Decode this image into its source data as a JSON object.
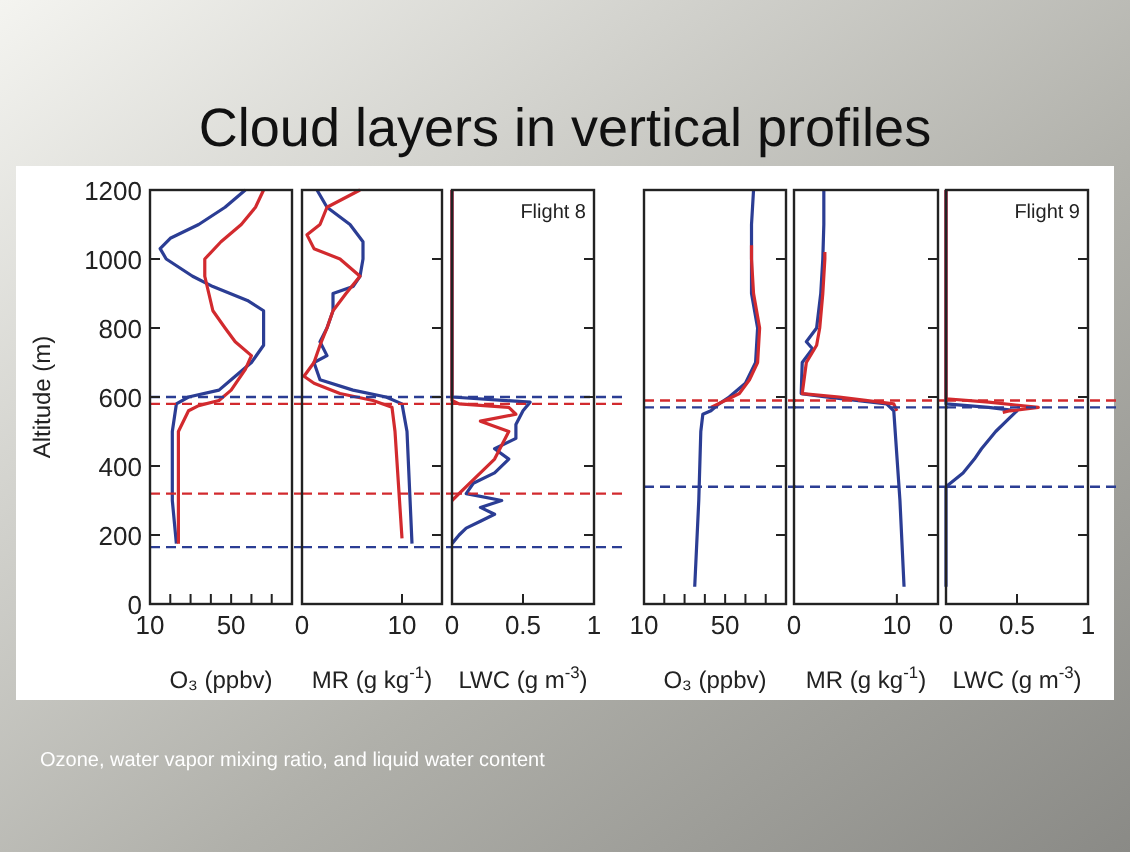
{
  "chart_data": [
    {
      "type": "line",
      "title": "Cloud layers in vertical profiles",
      "ylabel": "Altitude (m)",
      "xlabel": "O₃ (ppbv)",
      "annotations": [
        "Ozone, water vapor mixing ratio, and liquid water content"
      ],
      "xlim": [
        10,
        80
      ],
      "xticks": [
        10,
        {
          "value": 20,
          "label": null
        },
        {
          "value": 30,
          "label": null
        },
        {
          "value": 40,
          "label": null
        },
        50,
        {
          "value": 60,
          "label": null
        },
        {
          "value": 70,
          "label": null
        }
      ],
      "ylim": [
        0,
        1200
      ],
      "yticks": [
        0,
        200,
        400,
        600,
        800,
        1000,
        1200
      ],
      "grid": false,
      "series": [
        {
          "color": "#2b3d94",
          "x": [
            23,
            21,
            21,
            23,
            29,
            44,
            50,
            60,
            66,
            66,
            66,
            58,
            41,
            31,
            18,
            15,
            20,
            34,
            47,
            57
          ],
          "values": [
            175,
            300,
            500,
            580,
            600,
            620,
            650,
            700,
            750,
            800,
            850,
            880,
            920,
            950,
            1000,
            1030,
            1060,
            1100,
            1150,
            1200
          ]
        },
        {
          "color": "#d22a2e",
          "x": [
            24,
            24,
            29,
            34,
            44,
            50,
            57,
            60,
            52,
            47,
            41,
            39,
            37,
            37,
            45,
            55,
            62,
            66
          ],
          "values": [
            175,
            500,
            560,
            575,
            590,
            620,
            680,
            720,
            760,
            800,
            850,
            900,
            950,
            1000,
            1050,
            1100,
            1150,
            1200
          ]
        }
      ],
      "ref_lines": [
        {
          "axis": "y",
          "value": 600,
          "color": "#2b3d94",
          "line_style": "dashed"
        },
        {
          "axis": "y",
          "value": 580,
          "color": "#d22a2e",
          "line_style": "dashed"
        },
        {
          "axis": "y",
          "value": 320,
          "color": "#d22a2e",
          "line_style": "dashed"
        },
        {
          "axis": "y",
          "value": 165,
          "color": "#2b3d94",
          "line_style": "dashed"
        }
      ]
    },
    {
      "type": "line",
      "xlabel": "MR (g kg$^{-1}$)",
      "xlim": [
        0,
        14
      ],
      "xticks": [
        0,
        10
      ],
      "ylim": [
        0,
        1200
      ],
      "yticks": [
        0,
        200,
        400,
        600,
        800,
        1000,
        1200
      ],
      "tick_labels": "x",
      "grid": false,
      "series": [
        {
          "color": "#2b3d94",
          "x": [
            11.0,
            10.5,
            10.0,
            8.4,
            5.1,
            1.8,
            1.2,
            2.5,
            1.8,
            2.5,
            3.1,
            3.1,
            5.1,
            5.8,
            6.1,
            6.1,
            4.8,
            2.5,
            1.5
          ],
          "values": [
            175,
            500,
            580,
            600,
            620,
            650,
            700,
            720,
            760,
            800,
            850,
            900,
            920,
            950,
            1000,
            1050,
            1100,
            1150,
            1200
          ]
        },
        {
          "color": "#d22a2e",
          "x": [
            10.0,
            9.3,
            9.0,
            7.1,
            3.8,
            1.2,
            0.2,
            1.2,
            1.8,
            2.5,
            3.1,
            4.4,
            5.8,
            3.8,
            1.2,
            0.5,
            1.8,
            2.5,
            5.8
          ],
          "values": [
            190,
            500,
            570,
            590,
            610,
            640,
            660,
            700,
            750,
            800,
            850,
            900,
            950,
            1000,
            1030,
            1070,
            1100,
            1150,
            1200
          ]
        }
      ],
      "ref_lines": [
        {
          "axis": "y",
          "value": 600,
          "color": "#2b3d94",
          "line_style": "dashed"
        },
        {
          "axis": "y",
          "value": 580,
          "color": "#d22a2e",
          "line_style": "dashed"
        },
        {
          "axis": "y",
          "value": 320,
          "color": "#d22a2e",
          "line_style": "dashed"
        },
        {
          "axis": "y",
          "value": 165,
          "color": "#2b3d94",
          "line_style": "dashed"
        }
      ]
    },
    {
      "type": "line",
      "xlabel": "LWC (g m$^{-3}$)",
      "annotations": [
        "Flight 8"
      ],
      "xlim": [
        0,
        1
      ],
      "xticks": [
        0,
        0.5,
        1
      ],
      "ylim": [
        0,
        1200
      ],
      "yticks": [
        0,
        200,
        400,
        600,
        800,
        1000,
        1200
      ],
      "tick_labels": "x",
      "grid": false,
      "series": [
        {
          "color": "#2b3d94",
          "x": [
            0,
            0.05,
            0.1,
            0.2,
            0.3,
            0.2,
            0.35,
            0.1,
            0.15,
            0.3,
            0.4,
            0.3,
            0.45,
            0.45,
            0.5,
            0.55,
            0,
            0
          ],
          "values": [
            175,
            200,
            220,
            240,
            260,
            280,
            300,
            320,
            350,
            380,
            420,
            450,
            480,
            520,
            560,
            585,
            600,
            1200
          ]
        },
        {
          "color": "#d22a2e",
          "x": [
            0,
            0.1,
            0.2,
            0.3,
            0.35,
            0.4,
            0.2,
            0.45,
            0.4,
            0.05,
            0,
            0
          ],
          "values": [
            300,
            340,
            380,
            420,
            460,
            500,
            530,
            550,
            570,
            580,
            590,
            1200
          ]
        }
      ],
      "ref_lines": [
        {
          "axis": "y",
          "value": 600,
          "color": "#2b3d94",
          "line_style": "dashed"
        },
        {
          "axis": "y",
          "value": 580,
          "color": "#d22a2e",
          "line_style": "dashed"
        },
        {
          "axis": "y",
          "value": 320,
          "color": "#d22a2e",
          "line_style": "dashed"
        },
        {
          "axis": "y",
          "value": 165,
          "color": "#2b3d94",
          "line_style": "dashed"
        }
      ]
    },
    {
      "type": "line",
      "xlabel": "O₃ (ppbv)",
      "xlim": [
        10,
        80
      ],
      "xticks": [
        10,
        {
          "value": 20,
          "label": null
        },
        {
          "value": 30,
          "label": null
        },
        {
          "value": 40,
          "label": null
        },
        50,
        {
          "value": 60,
          "label": null
        },
        {
          "value": 70,
          "label": null
        }
      ],
      "ylim": [
        0,
        1200
      ],
      "yticks": [
        0,
        200,
        400,
        600,
        800,
        1000,
        1200
      ],
      "tick_labels": "x",
      "grid": false,
      "series": [
        {
          "color": "#2b3d94",
          "x": [
            35,
            37,
            38,
            39,
            43,
            47,
            52,
            60,
            65,
            66,
            63,
            63,
            63,
            64
          ],
          "values": [
            50,
            300,
            500,
            550,
            560,
            580,
            600,
            640,
            700,
            800,
            900,
            1000,
            1100,
            1200
          ]
        },
        {
          "color": "#d22a2e",
          "x": [
            43,
            50,
            57,
            62,
            66,
            67,
            64,
            63,
            63
          ],
          "values": [
            570,
            590,
            610,
            650,
            700,
            800,
            900,
            1000,
            1040
          ]
        }
      ],
      "ref_lines": [
        {
          "axis": "y",
          "value": 590,
          "color": "#d22a2e",
          "line_style": "dashed"
        },
        {
          "axis": "y",
          "value": 570,
          "color": "#2b3d94",
          "line_style": "dashed"
        },
        {
          "axis": "y",
          "value": 340,
          "color": "#2b3d94",
          "line_style": "dashed"
        }
      ]
    },
    {
      "type": "line",
      "xlabel": "MR (g kg$^{-1}$)",
      "xlim": [
        0,
        14
      ],
      "xticks": [
        0,
        10
      ],
      "ylim": [
        0,
        1200
      ],
      "yticks": [
        0,
        200,
        400,
        600,
        800,
        1000,
        1200
      ],
      "tick_labels": "x",
      "grid": false,
      "series": [
        {
          "color": "#2b3d94",
          "x": [
            10.7,
            10.3,
            9.7,
            9.0,
            3.1,
            0.7,
            0.8,
            1.8,
            1.2,
            2.2,
            2.6,
            2.8,
            2.9,
            2.9
          ],
          "values": [
            50,
            300,
            560,
            580,
            600,
            610,
            700,
            740,
            760,
            800,
            900,
            1000,
            1100,
            1200
          ]
        },
        {
          "color": "#d22a2e",
          "x": [
            10.0,
            9.7,
            4.4,
            0.8,
            1.2,
            2.2,
            2.5,
            2.8,
            3.0,
            3.0
          ],
          "values": [
            560,
            580,
            600,
            610,
            700,
            750,
            800,
            900,
            1000,
            1020
          ]
        }
      ],
      "ref_lines": [
        {
          "axis": "y",
          "value": 590,
          "color": "#d22a2e",
          "line_style": "dashed"
        },
        {
          "axis": "y",
          "value": 570,
          "color": "#2b3d94",
          "line_style": "dashed"
        },
        {
          "axis": "y",
          "value": 340,
          "color": "#2b3d94",
          "line_style": "dashed"
        }
      ]
    },
    {
      "type": "line",
      "xlabel": "LWC (g m$^{-3}$)",
      "annotations": [
        "Flight 9"
      ],
      "xlim": [
        0,
        1
      ],
      "xticks": [
        0,
        0.5,
        1
      ],
      "ylim": [
        0,
        1200
      ],
      "yticks": [
        0,
        200,
        400,
        600,
        800,
        1000,
        1200
      ],
      "tick_labels": "x",
      "grid": false,
      "series": [
        {
          "color": "#2b3d94",
          "x": [
            0,
            0,
            0.12,
            0.2,
            0.25,
            0.35,
            0.45,
            0.5,
            0.3,
            0,
            0
          ],
          "values": [
            50,
            340,
            380,
            420,
            450,
            500,
            540,
            560,
            570,
            580,
            1200
          ]
        },
        {
          "color": "#d22a2e",
          "x": [
            0.4,
            0.45,
            0.65,
            0.3,
            0,
            0
          ],
          "values": [
            555,
            560,
            570,
            585,
            595,
            1200
          ]
        }
      ],
      "ref_lines": [
        {
          "axis": "y",
          "value": 590,
          "color": "#d22a2e",
          "line_style": "dashed"
        },
        {
          "axis": "y",
          "value": 570,
          "color": "#2b3d94",
          "line_style": "dashed"
        },
        {
          "axis": "y",
          "value": 340,
          "color": "#2b3d94",
          "line_style": "dashed"
        }
      ]
    }
  ]
}
